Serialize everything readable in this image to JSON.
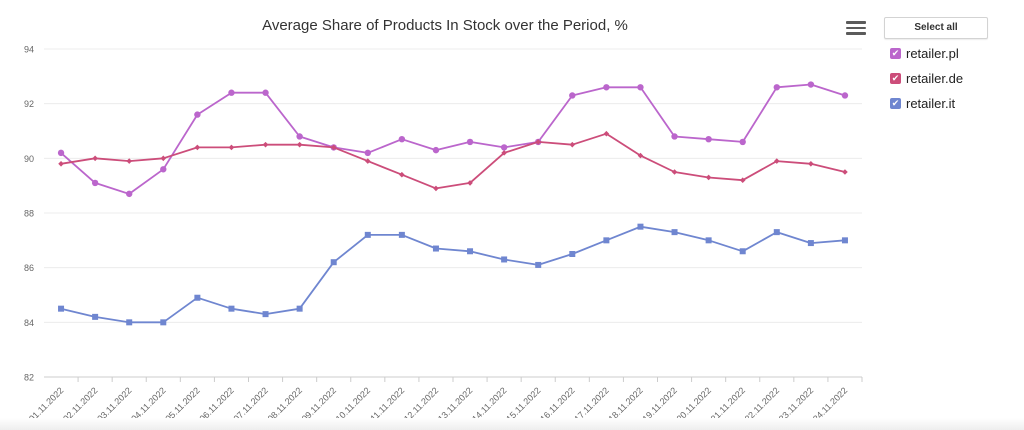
{
  "chart_data": {
    "type": "line",
    "title": "Average Share of Products In Stock over the Period, %",
    "xlabel": "",
    "ylabel": "",
    "ylim": [
      82,
      94
    ],
    "yticks": [
      82,
      84,
      86,
      88,
      90,
      92,
      94
    ],
    "grid": true,
    "legend_position": "right",
    "categories": [
      "01.11.2022",
      "02.11.2022",
      "03.11.2022",
      "04.11.2022",
      "05.11.2022",
      "06.11.2022",
      "07.11.2022",
      "08.11.2022",
      "09.11.2022",
      "10.11.2022",
      "11.11.2022",
      "12.11.2022",
      "13.11.2022",
      "14.11.2022",
      "15.11.2022",
      "16.11.2022",
      "17.11.2022",
      "18.11.2022",
      "19.11.2022",
      "20.11.2022",
      "21.11.2022",
      "22.11.2022",
      "23.11.2022",
      "24.11.2022"
    ],
    "series": [
      {
        "name": "retailer.pl",
        "color": "#bb66cc",
        "marker": "circle",
        "values": [
          90.2,
          89.1,
          88.7,
          89.6,
          91.6,
          92.4,
          92.4,
          90.8,
          90.4,
          90.2,
          90.7,
          90.3,
          90.6,
          90.4,
          90.6,
          92.3,
          92.6,
          92.6,
          90.8,
          90.7,
          90.6,
          92.6,
          92.7,
          92.3
        ]
      },
      {
        "name": "retailer.de",
        "color": "#cc4d7a",
        "marker": "diamond",
        "values": [
          89.8,
          90.0,
          89.9,
          90.0,
          90.4,
          90.4,
          90.5,
          90.5,
          90.4,
          89.9,
          89.4,
          88.9,
          89.1,
          90.2,
          90.6,
          90.5,
          90.9,
          90.1,
          89.5,
          89.3,
          89.2,
          89.9,
          89.8,
          89.5
        ]
      },
      {
        "name": "retailer.it",
        "color": "#6f86d0",
        "marker": "square",
        "values": [
          84.5,
          84.2,
          84.0,
          84.0,
          84.9,
          84.5,
          84.3,
          84.5,
          86.2,
          87.2,
          87.2,
          86.7,
          86.6,
          86.3,
          86.1,
          86.5,
          87.0,
          87.5,
          87.3,
          87.0,
          86.6,
          87.3,
          86.9,
          87.0
        ]
      }
    ]
  },
  "toolbar": {
    "menu_icon": "hamburger-menu-icon"
  },
  "legend": {
    "select_all_label": "Select all",
    "check_glyph": "✔"
  }
}
